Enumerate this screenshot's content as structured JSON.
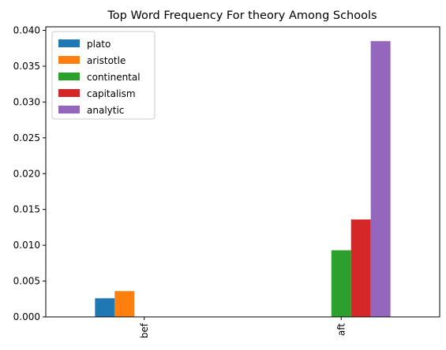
{
  "chart_data": {
    "type": "bar",
    "title": "Top Word Frequency For theory Among Schools",
    "xlabel": "",
    "ylabel": "",
    "categories": [
      "bef",
      "aft"
    ],
    "ylim": [
      0,
      0.0405
    ],
    "yticks": [
      0.0,
      0.005,
      0.01,
      0.015,
      0.02,
      0.025,
      0.03,
      0.035,
      0.04
    ],
    "ytick_labels": [
      "0.000",
      "0.005",
      "0.010",
      "0.015",
      "0.020",
      "0.025",
      "0.030",
      "0.035",
      "0.040"
    ],
    "grid": false,
    "legend_position": "top-left",
    "series": [
      {
        "name": "plato",
        "color": "#1f77b4",
        "values": [
          0.0026,
          0
        ]
      },
      {
        "name": "aristotle",
        "color": "#ff7f0e",
        "values": [
          0.0036,
          0
        ]
      },
      {
        "name": "continental",
        "color": "#2ca02c",
        "values": [
          0,
          0.0093
        ]
      },
      {
        "name": "capitalism",
        "color": "#d62728",
        "values": [
          0,
          0.0136
        ]
      },
      {
        "name": "analytic",
        "color": "#9467bd",
        "values": [
          0,
          0.0385
        ]
      }
    ]
  }
}
